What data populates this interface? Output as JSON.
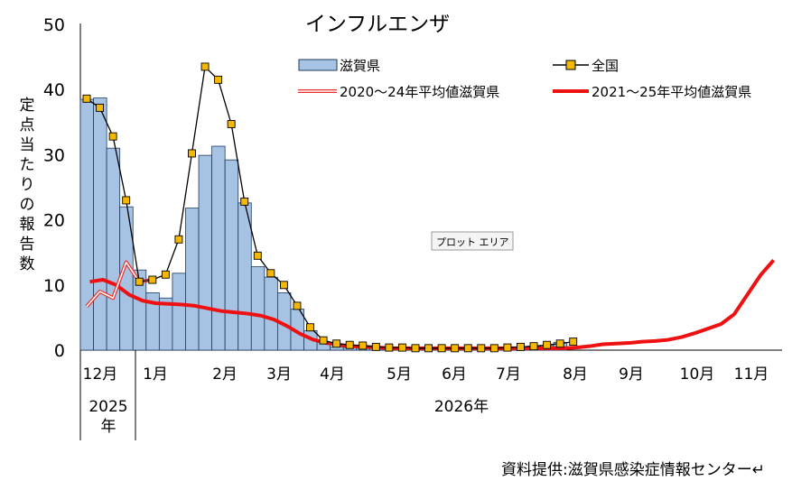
{
  "chart_data": {
    "type": "bar",
    "title": "インフルエンザ",
    "ylabel": "定点当たりの報告数",
    "ylim": [
      0,
      50
    ],
    "yticks": [
      "0",
      "10",
      "20",
      "30",
      "40",
      "50"
    ],
    "month_labels": [
      "12月",
      "1月",
      "2月",
      "3月",
      "4月",
      "5月",
      "6月",
      "7月",
      "8月",
      "9月",
      "10月",
      "11月"
    ],
    "year_labels": [
      "2025\n年",
      "2026年"
    ],
    "tooltip": "プロット エリア",
    "source": "資料提供:滋賀県感染症情報センター↵",
    "series": [
      {
        "name": "滋賀県",
        "type": "bar",
        "color": "#a7c3e3",
        "values": [
          38.5,
          38.7,
          31.0,
          22.0,
          12.3,
          8.8,
          8.0,
          11.8,
          21.8,
          29.9,
          31.3,
          29.2,
          22.6,
          12.8,
          11.2,
          8.8,
          6.3,
          3.0,
          1.2,
          0.5,
          0.4,
          0.3,
          0.3,
          0.3,
          0.2,
          0.2,
          0.2,
          0.2,
          0.2,
          0.2,
          0.3,
          0.3,
          0.3,
          0.5,
          0.6,
          0.7,
          1.2
        ]
      },
      {
        "name": "全国",
        "type": "line-marker",
        "color": "#f5b800",
        "values": [
          38.6,
          37.2,
          32.8,
          23.0,
          10.5,
          10.8,
          11.6,
          17.0,
          30.2,
          43.5,
          41.5,
          34.7,
          22.8,
          14.5,
          11.8,
          10.0,
          6.8,
          3.5,
          1.5,
          1.0,
          0.8,
          0.7,
          0.5,
          0.4,
          0.4,
          0.3,
          0.3,
          0.3,
          0.3,
          0.3,
          0.3,
          0.3,
          0.4,
          0.5,
          0.6,
          0.8,
          1.0,
          1.3
        ]
      },
      {
        "name": "2020～24年平均値滋賀県",
        "type": "line-double",
        "color": "#e8302c",
        "values": [
          6.7,
          9.0,
          8.0,
          13.5,
          10.5,
          10.8
        ]
      },
      {
        "name": "2021～25年平均値滋賀県",
        "type": "line",
        "color": "#ee1111",
        "values": [
          10.5,
          10.8,
          10.0,
          8.5,
          7.6,
          7.2,
          7.1,
          7.0,
          6.8,
          6.4,
          6.0,
          5.8,
          5.6,
          5.3,
          4.7,
          3.7,
          2.5,
          1.6,
          1.1,
          0.8,
          0.6,
          0.5,
          0.4,
          0.3,
          0.3,
          0.3,
          0.3,
          0.3,
          0.3,
          0.3,
          0.3,
          0.3,
          0.3,
          0.3,
          0.3,
          0.3,
          0.3,
          0.4,
          0.6,
          0.9,
          1.0,
          1.1,
          1.3,
          1.4,
          1.6,
          2.0,
          2.6,
          3.3,
          4.0,
          5.5,
          8.5,
          11.5,
          13.8
        ]
      }
    ]
  }
}
